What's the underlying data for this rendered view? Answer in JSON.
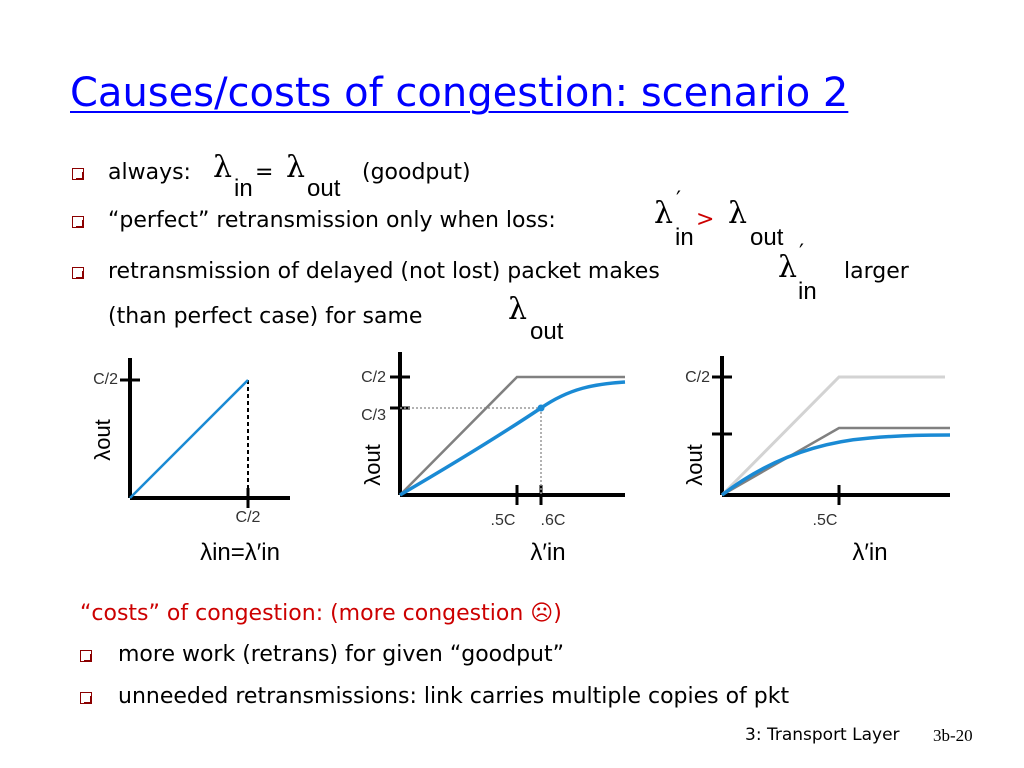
{
  "title": "Causes/costs of congestion: scenario 2",
  "bullets": {
    "b1_text": "always:",
    "b1_eq": "=",
    "b1_paren": "(goodput)",
    "b2_text": "“perfect” retransmission only when loss:",
    "b2_gt": ">",
    "b3_line1": "retransmission of delayed (not lost) packet makes",
    "b3_larger": "larger",
    "b3_line2": "(than perfect case) for same"
  },
  "symbols": {
    "lambda": "λ",
    "in": "in",
    "out": "out",
    "prime": "′"
  },
  "graphs": [
    {
      "y_label": "λout",
      "y_ticks": [
        "C/2"
      ],
      "x_ticks": [
        "C/2"
      ],
      "x_label": "λin=λ′in"
    },
    {
      "y_label": "λout",
      "y_ticks": [
        "C/2",
        "C/3"
      ],
      "x_ticks": [
        ".5C",
        ".6C"
      ],
      "x_label": "λ′in"
    },
    {
      "y_label": "λout",
      "y_ticks": [
        "C/2"
      ],
      "x_ticks": [
        ".5C"
      ],
      "x_label": "λ′in"
    }
  ],
  "costs": {
    "heading": "“costs” of congestion: (more congestion",
    "frown": "☹",
    "heading_close": ")",
    "items": [
      "more work (retrans) for given “goodput”",
      "unneeded retransmissions: link carries multiple copies of pkt"
    ]
  },
  "footer": {
    "chapter": "3: Transport Layer",
    "page": "3b-20"
  },
  "colors": {
    "title": "#0000ff",
    "bullet": "#8b0000",
    "red_text": "#cc0000",
    "curve": "#1a8ad4",
    "ideal": "#808080",
    "ideal_light": "#d3d3d3"
  }
}
